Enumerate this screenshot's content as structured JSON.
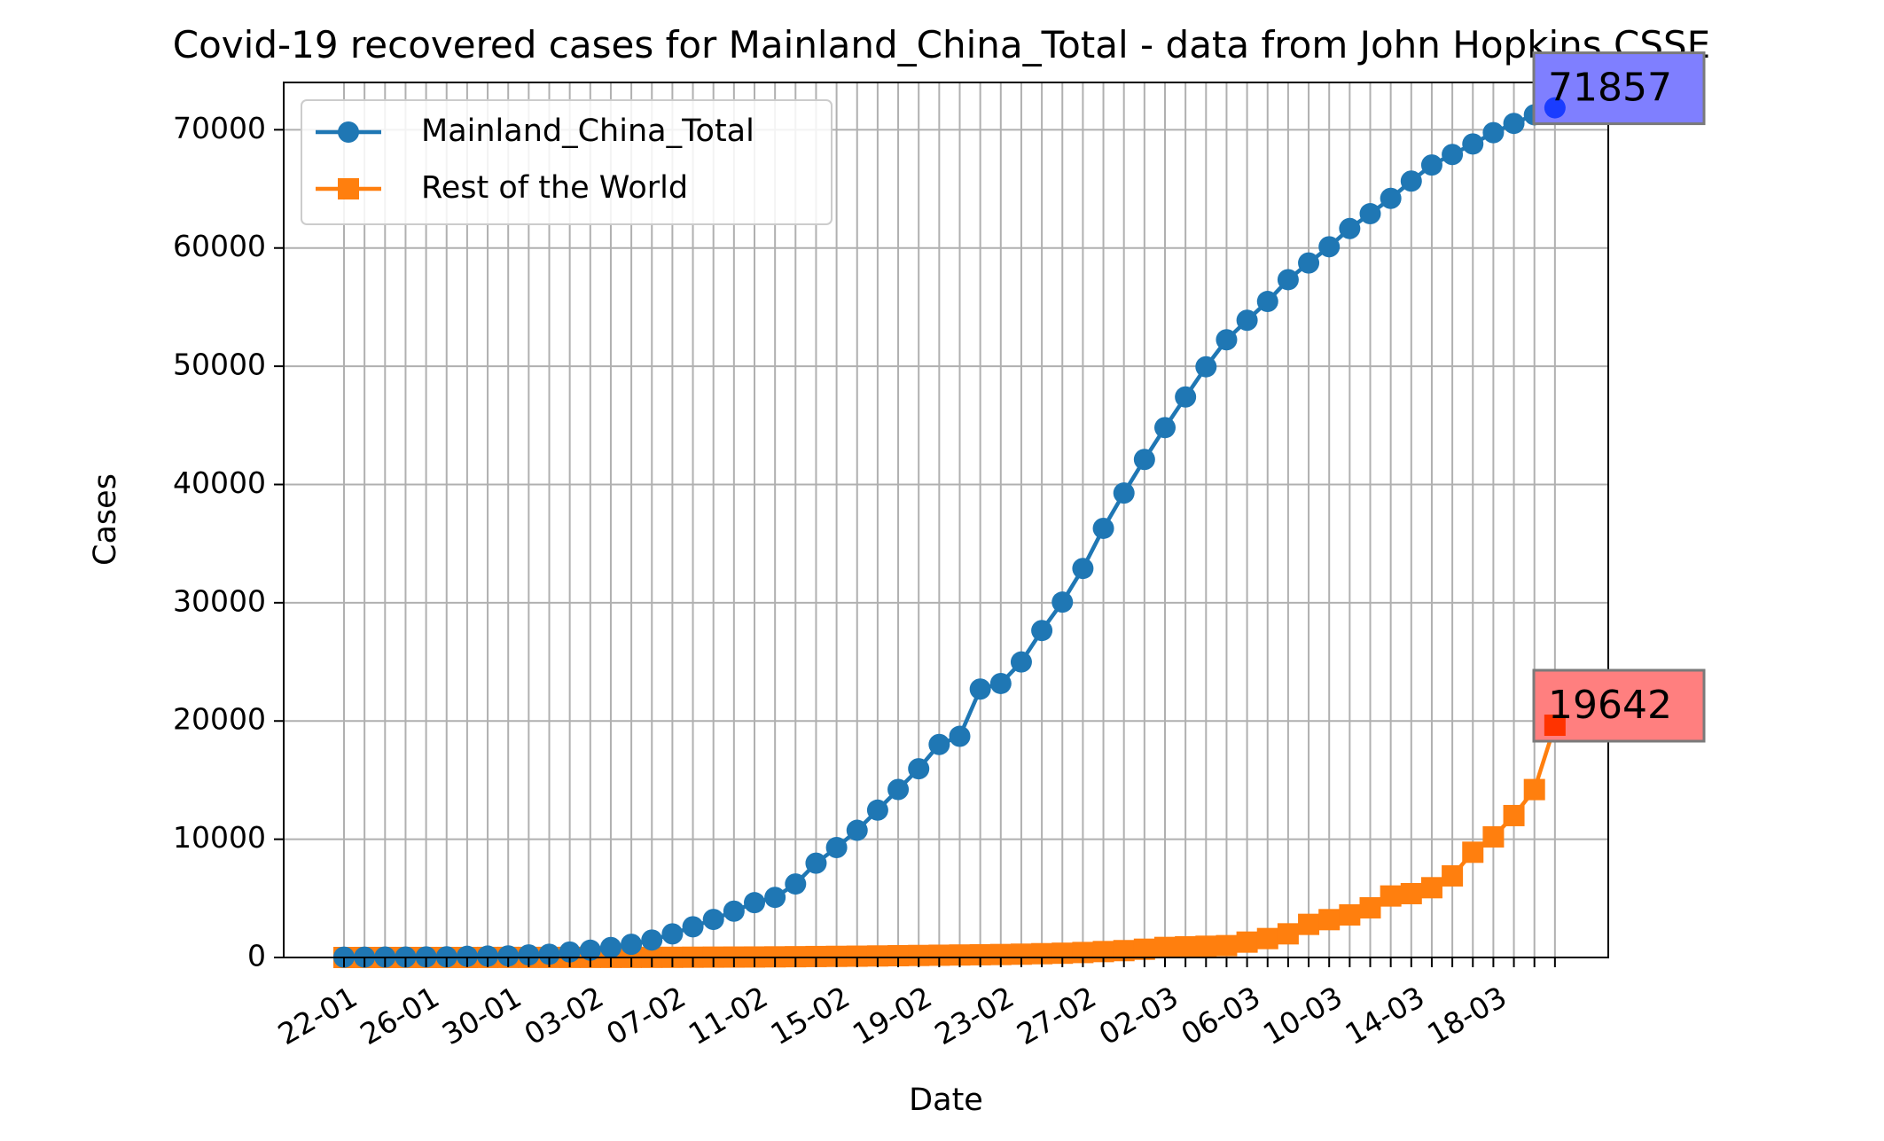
{
  "chart_data": {
    "type": "line",
    "title": "Covid-19 recovered cases for Mainland_China_Total - data from John Hopkins CSSE",
    "xlabel": "Date",
    "ylabel": "Cases",
    "ylim": [
      0,
      74000
    ],
    "yticks": [
      0,
      10000,
      20000,
      30000,
      40000,
      50000,
      60000,
      70000
    ],
    "ytick_labels": [
      "0",
      "10000",
      "20000",
      "30000",
      "40000",
      "50000",
      "60000",
      "70000"
    ],
    "grid": true,
    "legend_position": "top-left",
    "x": [
      "22-01",
      "23-01",
      "24-01",
      "25-01",
      "26-01",
      "27-01",
      "28-01",
      "29-01",
      "30-01",
      "31-01",
      "01-02",
      "02-02",
      "03-02",
      "04-02",
      "05-02",
      "06-02",
      "07-02",
      "08-02",
      "09-02",
      "10-02",
      "11-02",
      "12-02",
      "13-02",
      "14-02",
      "15-02",
      "16-02",
      "17-02",
      "18-02",
      "19-02",
      "20-02",
      "21-02",
      "22-02",
      "23-02",
      "24-02",
      "25-02",
      "26-02",
      "27-02",
      "28-02",
      "29-02",
      "01-03",
      "02-03",
      "03-03",
      "04-03",
      "05-03",
      "06-03",
      "07-03",
      "08-03",
      "09-03",
      "10-03",
      "11-03",
      "12-03",
      "13-03",
      "14-03",
      "15-03",
      "16-03",
      "17-03",
      "18-03",
      "19-03",
      "20-03",
      "21-03"
    ],
    "xtick_labels": [
      "22-01",
      "26-01",
      "30-01",
      "03-02",
      "07-02",
      "11-02",
      "15-02",
      "19-02",
      "23-02",
      "27-02",
      "02-03",
      "06-03",
      "10-03",
      "14-03",
      "18-03"
    ],
    "series": [
      {
        "name": "Mainland_China_Total",
        "color": "#1f77b4",
        "marker": "circle",
        "values": [
          28,
          30,
          36,
          39,
          49,
          58,
          101,
          120,
          135,
          214,
          275,
          463,
          614,
          843,
          1115,
          1476,
          1996,
          2596,
          3219,
          3918,
          4636,
          5082,
          6217,
          7977,
          9298,
          10755,
          12462,
          14206,
          15962,
          18014,
          18704,
          22699,
          23170,
          24990,
          27650,
          30053,
          32898,
          36291,
          39279,
          42118,
          44810,
          47404,
          49955,
          52240,
          53888,
          55478,
          57320,
          58735,
          60106,
          61644,
          62901,
          64196,
          65660,
          67017,
          67910,
          68798,
          69755,
          70535,
          71266,
          71857
        ]
      },
      {
        "name": "Rest of the World",
        "color": "#ff7f0e",
        "marker": "square",
        "values": [
          0,
          2,
          3,
          3,
          3,
          3,
          3,
          6,
          8,
          8,
          9,
          9,
          9,
          9,
          10,
          12,
          15,
          23,
          30,
          35,
          40,
          52,
          65,
          80,
          95,
          110,
          130,
          150,
          170,
          190,
          210,
          230,
          250,
          280,
          320,
          360,
          420,
          500,
          580,
          700,
          850,
          900,
          950,
          1000,
          1300,
          1600,
          2000,
          2800,
          3200,
          3600,
          4200,
          5200,
          5400,
          5900,
          6900,
          8900,
          10200,
          12000,
          14200,
          19642
        ]
      }
    ],
    "annotations": [
      {
        "series": "Mainland_China_Total",
        "text": "71857",
        "box_color": "#7f7fff",
        "marker_color": "#1a3cff"
      },
      {
        "series": "Rest of the World",
        "text": "19642",
        "box_color": "#ff7f7f",
        "marker_color": "#ff3300"
      }
    ]
  }
}
